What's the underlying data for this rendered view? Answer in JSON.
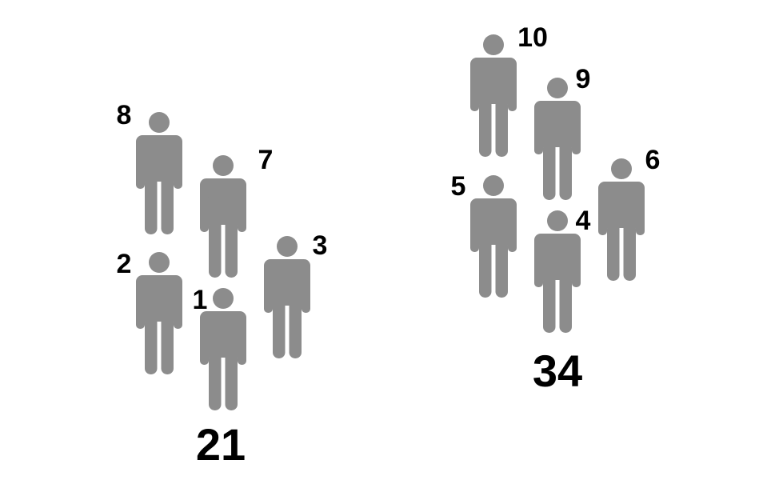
{
  "colors": {
    "figure": "#8c8c8c",
    "text": "#000000",
    "background": "#ffffff"
  },
  "icon": "person-icon",
  "groups": [
    {
      "total": "21",
      "people": [
        {
          "number": "1"
        },
        {
          "number": "2"
        },
        {
          "number": "3"
        },
        {
          "number": "7"
        },
        {
          "number": "8"
        }
      ]
    },
    {
      "total": "34",
      "people": [
        {
          "number": "4"
        },
        {
          "number": "5"
        },
        {
          "number": "6"
        },
        {
          "number": "9"
        },
        {
          "number": "10"
        }
      ]
    }
  ]
}
